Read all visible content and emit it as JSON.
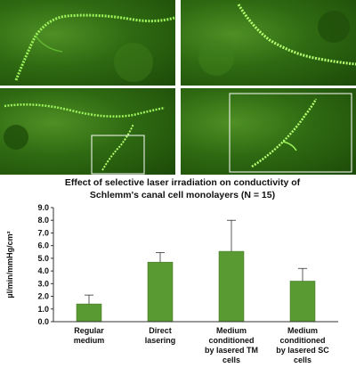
{
  "figure": {
    "panels": [
      {
        "name": "top-left"
      },
      {
        "name": "top-right"
      },
      {
        "name": "bottom-left"
      },
      {
        "name": "bottom-right"
      }
    ]
  },
  "chart_data": {
    "type": "bar",
    "title_line1": "Effect of selective laser irradiation on conductivity of",
    "title_line2": "Schlemm's canal cell monolayers (N = 15)",
    "ylabel": "µl/min/mmHg/cm²",
    "ylim": [
      0,
      9
    ],
    "yticks": [
      "0.0",
      "1.0",
      "2.0",
      "3.0",
      "4.0",
      "5.0",
      "6.0",
      "7.0",
      "8.0",
      "9.0"
    ],
    "categories": [
      [
        "Regular",
        "medium"
      ],
      [
        "Direct",
        "lasering"
      ],
      [
        "Medium",
        "conditioned",
        "by lasered TM",
        "cells"
      ],
      [
        "Medium",
        "conditioned",
        "by lasered SC",
        "cells"
      ]
    ],
    "values": [
      1.4,
      4.7,
      5.55,
      3.2
    ],
    "errors": [
      0.7,
      0.75,
      2.45,
      1.0
    ],
    "bar_color": "#5a9a32",
    "grid": false
  }
}
